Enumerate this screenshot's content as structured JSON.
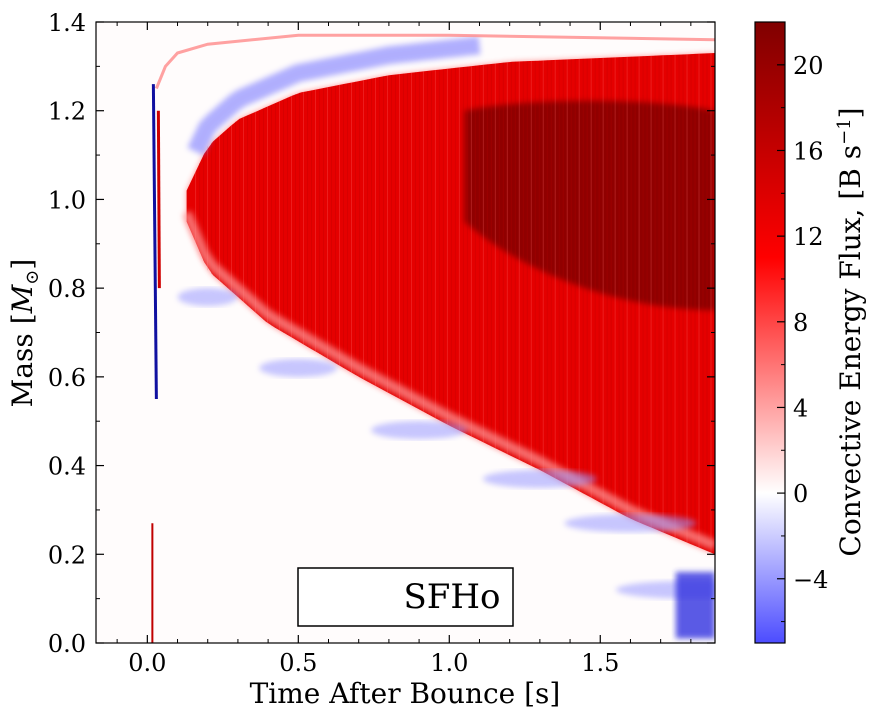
{
  "chart_data": {
    "type": "heatmap",
    "title": "",
    "xlabel": "Time After Bounce [s]",
    "ylabel": "Mass [M_⊙]",
    "ylabel_main": "Mass [",
    "ylabel_sub": "⊙",
    "ylabel_close": "]",
    "xlim": [
      -0.17,
      1.88
    ],
    "ylim": [
      0.0,
      1.4
    ],
    "x_ticks": [
      0.0,
      0.5,
      1.0,
      1.5
    ],
    "x_tick_labels": [
      "0.0",
      "0.5",
      "1.0",
      "1.5"
    ],
    "y_ticks": [
      0.0,
      0.2,
      0.4,
      0.6,
      0.8,
      1.0,
      1.2,
      1.4
    ],
    "y_tick_labels": [
      "0.0",
      "0.2",
      "0.4",
      "0.6",
      "0.8",
      "1.0",
      "1.2",
      "1.4"
    ],
    "annotation": "SFHo",
    "colorbar": {
      "label": "Convective Energy Flux, [B s⁻¹]",
      "label_main": "Convective Energy Flux, [B s",
      "label_sup": "−1",
      "label_close": "]",
      "range": [
        -7,
        22
      ],
      "ticks": [
        -4,
        0,
        4,
        8,
        12,
        16,
        20
      ],
      "tick_labels": [
        "−4",
        "0",
        "4",
        "8",
        "12",
        "16",
        "20"
      ],
      "colors": {
        "negative": "#4c4cff",
        "zero": "#ffffff",
        "mid": "#ff0000",
        "max": "#800000"
      }
    },
    "features": {
      "bounce_time": 0.02,
      "shock_edge": [
        [
          0.03,
          1.25
        ],
        [
          0.06,
          1.3
        ],
        [
          0.1,
          1.33
        ],
        [
          0.2,
          1.35
        ],
        [
          0.5,
          1.37
        ],
        [
          1.0,
          1.37
        ],
        [
          1.88,
          1.36
        ]
      ],
      "convective_region_top": [
        [
          0.13,
          1.02
        ],
        [
          0.2,
          1.12
        ],
        [
          0.3,
          1.18
        ],
        [
          0.5,
          1.24
        ],
        [
          0.8,
          1.28
        ],
        [
          1.2,
          1.31
        ],
        [
          1.88,
          1.33
        ]
      ],
      "convective_region_bottom": [
        [
          0.13,
          0.95
        ],
        [
          0.2,
          0.84
        ],
        [
          0.4,
          0.72
        ],
        [
          0.7,
          0.6
        ],
        [
          1.0,
          0.49
        ],
        [
          1.3,
          0.39
        ],
        [
          1.6,
          0.28
        ],
        [
          1.88,
          0.2
        ]
      ],
      "negative_bands": [
        [
          0.2,
          0.78
        ],
        [
          0.5,
          0.62
        ],
        [
          0.9,
          0.48
        ],
        [
          1.3,
          0.37
        ],
        [
          1.6,
          0.27
        ],
        [
          1.8,
          0.12
        ]
      ],
      "peak_flux_region": {
        "t_from": 1.05,
        "t_to": 1.88,
        "m_from": 0.75,
        "m_to": 1.2
      }
    }
  }
}
